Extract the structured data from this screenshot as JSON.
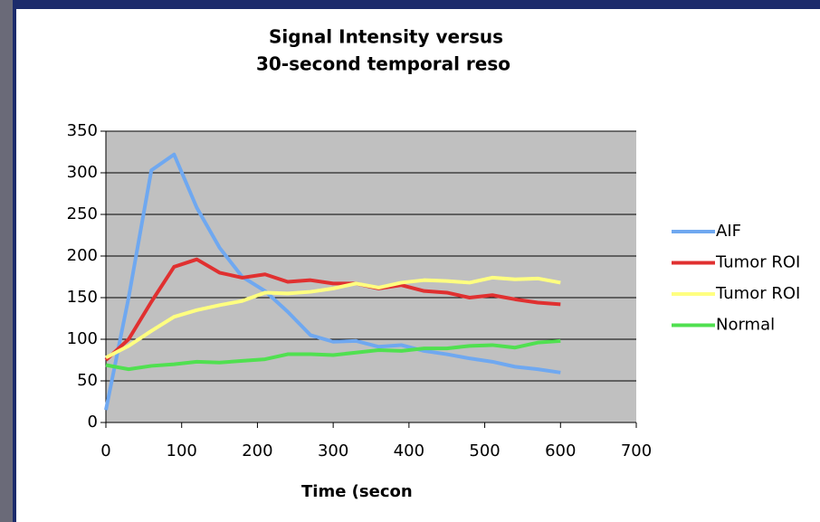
{
  "chart_data": {
    "type": "line",
    "title": [
      "Signal Intensity versus",
      "30-second temporal reso"
    ],
    "xlabel": "Time (secon",
    "x": [
      0,
      30,
      60,
      90,
      120,
      150,
      180,
      210,
      240,
      270,
      300,
      330,
      360,
      390,
      420,
      450,
      480,
      510,
      540,
      570,
      600
    ],
    "series": [
      {
        "name": "AIF",
        "color": "#6fa8f0",
        "values": [
          15,
          150,
          303,
          322,
          258,
          210,
          175,
          158,
          133,
          105,
          97,
          98,
          91,
          93,
          86,
          82,
          77,
          73,
          67,
          64,
          60
        ]
      },
      {
        "name": "Tumor ROI",
        "color": "#e03030",
        "values": [
          75,
          100,
          145,
          187,
          196,
          180,
          174,
          178,
          169,
          171,
          167,
          167,
          161,
          165,
          158,
          156,
          150,
          153,
          148,
          144,
          142
        ]
      },
      {
        "name": "Tumor ROI",
        "color": "#ffff80",
        "values": [
          78,
          92,
          110,
          127,
          135,
          141,
          146,
          156,
          155,
          157,
          161,
          167,
          162,
          168,
          171,
          170,
          168,
          174,
          172,
          173,
          168
        ]
      },
      {
        "name": "Normal",
        "color": "#50e050",
        "values": [
          69,
          64,
          68,
          70,
          73,
          72,
          74,
          76,
          82,
          82,
          81,
          84,
          87,
          86,
          89,
          89,
          92,
          93,
          90,
          96,
          98
        ]
      }
    ],
    "xlim": [
      0,
      700
    ],
    "xticks": [
      0,
      100,
      200,
      300,
      400,
      500,
      600,
      700
    ],
    "ylim": [
      0,
      350
    ],
    "yticks": [
      0,
      50,
      100,
      150,
      200,
      250,
      300,
      350
    ],
    "grid": true,
    "legend": "right"
  }
}
